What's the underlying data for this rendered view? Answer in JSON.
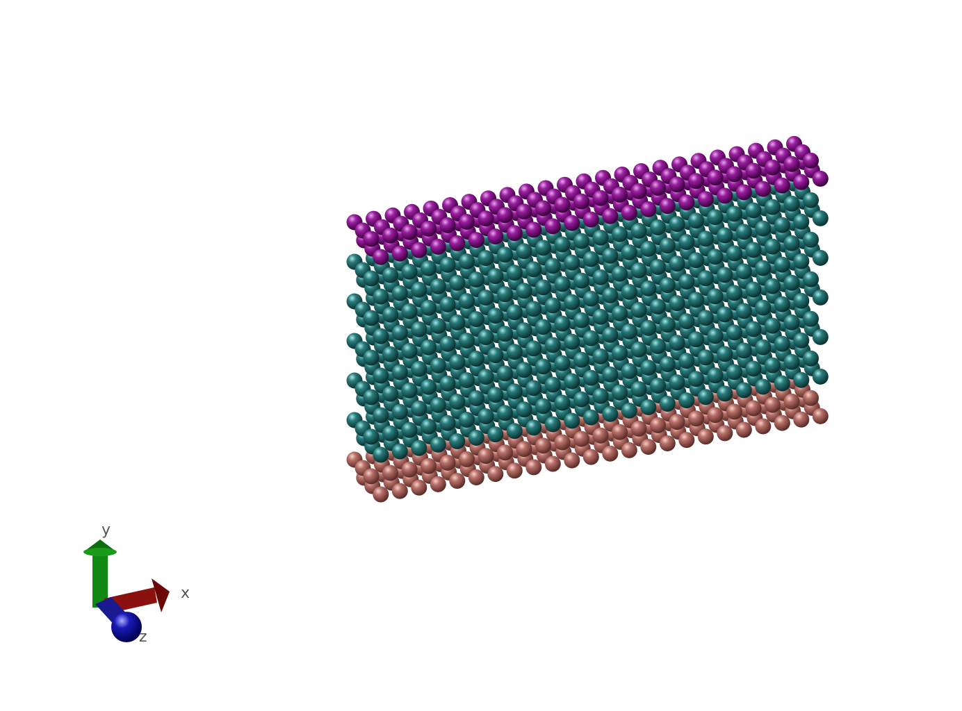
{
  "colors": {
    "background": "#ffffff",
    "top_layer": "#7a0a7e",
    "middle_layer": "#1f6b6b",
    "bottom_layer": "#b8706a",
    "axis_x": "#8b1010",
    "axis_y": "#118811",
    "axis_z": "#1a1aa8"
  },
  "axes": {
    "x_label": "x",
    "y_label": "y",
    "z_label": "z"
  },
  "lattice": {
    "layers": [
      {
        "name_key": "top_layer",
        "rows": 2
      },
      {
        "name_key": "middle_layer",
        "rows": 10
      },
      {
        "name_key": "bottom_layer",
        "rows": 2
      }
    ],
    "columns": 24,
    "depth": 3
  }
}
